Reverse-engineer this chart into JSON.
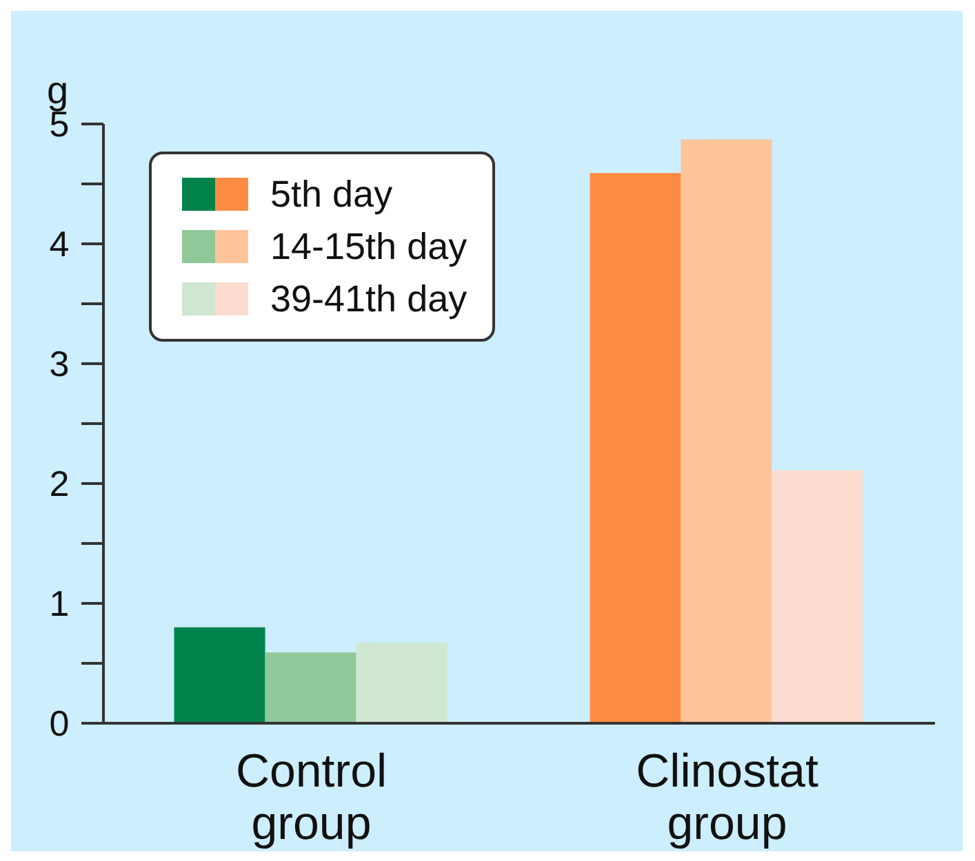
{
  "chart_data": {
    "type": "bar",
    "ylabel": "g",
    "categories": [
      "Control group",
      "Clinostat group"
    ],
    "series": [
      {
        "name": "5th day",
        "colors": [
          "#00834a",
          "#ff8c42"
        ],
        "values": [
          0.8,
          4.59
        ]
      },
      {
        "name": "14-15th day",
        "colors": [
          "#90c89a",
          "#ffc49a"
        ],
        "values": [
          0.59,
          4.87
        ]
      },
      {
        "name": "39-41th day",
        "colors": [
          "#cfe6d0",
          "#fddcd0"
        ],
        "values": [
          0.67,
          2.11
        ]
      }
    ],
    "ylim": [
      0,
      5
    ],
    "yticks": [
      0,
      {
        "value": 0.5,
        "label": null
      },
      1,
      {
        "value": 1.5,
        "label": null
      },
      2,
      {
        "value": 2.5,
        "label": null
      },
      3,
      {
        "value": 3.5,
        "label": null
      },
      4,
      {
        "value": 4.5,
        "label": null
      },
      5
    ],
    "grid": false,
    "legend": "top left"
  }
}
